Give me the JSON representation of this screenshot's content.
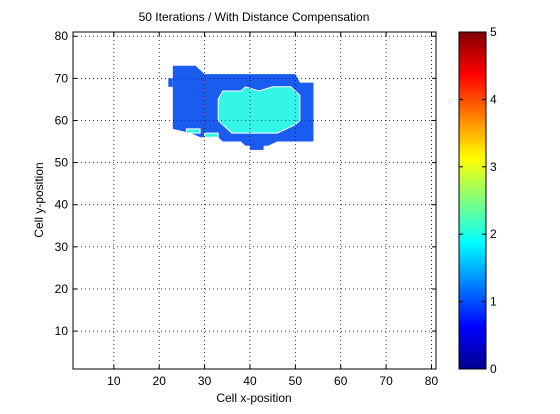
{
  "chart_data": {
    "type": "heatmap",
    "title": "50 Iterations / With Distance Compensation",
    "xlabel": "Cell x-position",
    "ylabel": "Cell y-position",
    "xlim": [
      1,
      81
    ],
    "ylim": [
      1,
      81
    ],
    "xticks": [
      10,
      20,
      30,
      40,
      50,
      60,
      70,
      80
    ],
    "yticks": [
      10,
      20,
      30,
      40,
      50,
      60,
      70,
      80
    ],
    "grid": true,
    "grid_style": "dotted",
    "colormap": "jet",
    "clim": [
      0,
      5
    ],
    "colorbar_ticks": [
      0,
      1,
      2,
      3,
      4,
      5
    ],
    "colors": {
      "low_value_region": "#1a5cf0",
      "high_value_region": "#33f5e8",
      "background": "#ffffff"
    },
    "regions": [
      {
        "value": 1.0,
        "polygon": [
          [
            23,
            73
          ],
          [
            28,
            73
          ],
          [
            30,
            71
          ],
          [
            50,
            71
          ],
          [
            51,
            69
          ],
          [
            54,
            69
          ],
          [
            54,
            55
          ],
          [
            46,
            55
          ],
          [
            44,
            54
          ],
          [
            39,
            54
          ],
          [
            38,
            55
          ],
          [
            34,
            55
          ],
          [
            33,
            56
          ],
          [
            29,
            56
          ],
          [
            27,
            57
          ],
          [
            23,
            58
          ]
        ]
      },
      {
        "value": 1.0,
        "polygon": [
          [
            22,
            70
          ],
          [
            23,
            70
          ],
          [
            23,
            68
          ],
          [
            22,
            68
          ]
        ]
      },
      {
        "value": 1.0,
        "polygon": [
          [
            40,
            55
          ],
          [
            43,
            55
          ],
          [
            43,
            53
          ],
          [
            40,
            53
          ]
        ]
      },
      {
        "value": 2.0,
        "polygon": [
          [
            34,
            67
          ],
          [
            38,
            67
          ],
          [
            39,
            68
          ],
          [
            42,
            67
          ],
          [
            45,
            68
          ],
          [
            49,
            68
          ],
          [
            50,
            67
          ],
          [
            51,
            66
          ],
          [
            51,
            60
          ],
          [
            50,
            59
          ],
          [
            48,
            58
          ],
          [
            46,
            57
          ],
          [
            36,
            57
          ],
          [
            35,
            58
          ],
          [
            34,
            59
          ],
          [
            33,
            60
          ],
          [
            33,
            65
          ]
        ]
      },
      {
        "value": 2.0,
        "polygon": [
          [
            26,
            58
          ],
          [
            29,
            58
          ],
          [
            29,
            57
          ],
          [
            26,
            57
          ]
        ]
      },
      {
        "value": 2.0,
        "polygon": [
          [
            30,
            57
          ],
          [
            33,
            57
          ],
          [
            33,
            56
          ],
          [
            30,
            56
          ]
        ]
      }
    ]
  }
}
